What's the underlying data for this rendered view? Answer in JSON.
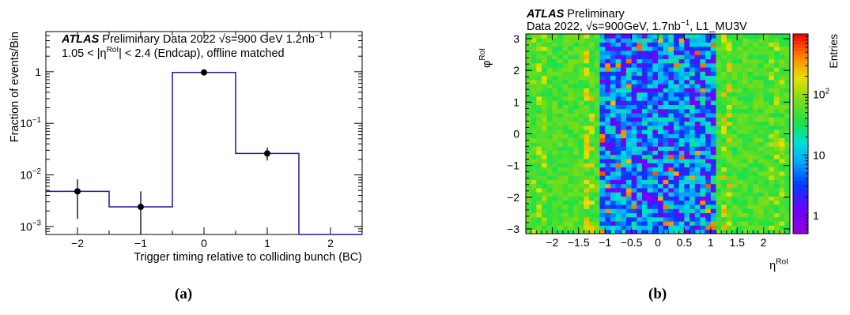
{
  "chart_data": [
    {
      "type": "line",
      "panel_caption": "(a)",
      "xlabel": "Trigger timing relative to colliding bunch (BC)",
      "ylabel": "Fraction of events/Bin",
      "xlim": [
        -2.5,
        2.5
      ],
      "ylim": [
        0.0007,
        6
      ],
      "y_scale": "log",
      "x_ticks": [
        "−2",
        "−1",
        "0",
        "1",
        "2"
      ],
      "x_tick_values": [
        -2,
        -1,
        0,
        1,
        2
      ],
      "y_ticks": [
        {
          "value": 0.001,
          "base": "10",
          "exp": "−3"
        },
        {
          "value": 0.01,
          "base": "10",
          "exp": "−2"
        },
        {
          "value": 0.1,
          "base": "10",
          "exp": "−1"
        },
        {
          "value": 1,
          "base": "1",
          "exp": ""
        }
      ],
      "annotation": {
        "atlas": "ATLAS",
        "line1": "Preliminary Data 2022 √s=900 GeV 1.2nb",
        "line1_sup": "−1",
        "line2_pre": "1.05 < |η",
        "line2_sup": "RoI",
        "line2_post": "| < 2.4 (Endcap), offline matched"
      },
      "histogram": {
        "bin_edges": [
          -2.5,
          -1.5,
          -0.5,
          0.5,
          1.5,
          2.5
        ],
        "values": [
          0.0048,
          0.0024,
          0.97,
          0.026,
          0
        ]
      },
      "points": {
        "x": [
          -2,
          -1,
          0,
          1
        ],
        "y": [
          0.0048,
          0.0024,
          0.97,
          0.026
        ],
        "y_low": [
          0.0014,
          0.0007,
          0.95,
          0.019
        ],
        "y_high": [
          0.0082,
          0.0048,
          0.99,
          0.034
        ]
      },
      "colors": {
        "histogram": "#1a1aa8",
        "points": "#000000"
      }
    },
    {
      "type": "heatmap",
      "panel_caption": "(b)",
      "title_atlas": "ATLAS",
      "title_rest": "Preliminary",
      "subtitle_pre": "Data 2022, √s=900GeV, 1.7nb",
      "subtitle_sup": "−1",
      "subtitle_post": ", L1_MU3V",
      "xlabel": "η",
      "xlabel_sup": "RoI",
      "ylabel": "φ",
      "ylabel_sup": "RoI",
      "zlabel": "Entries",
      "xlim": [
        -2.5,
        2.5
      ],
      "ylim": [
        -3.15,
        3.15
      ],
      "z_scale": "log",
      "zlim": [
        0.5,
        1000
      ],
      "x_ticks": [
        "−2",
        "−1.5",
        "−1",
        "−0.5",
        "0",
        "0.5",
        "1",
        "1.5",
        "2"
      ],
      "x_tick_values": [
        -2,
        -1.5,
        -1,
        -0.5,
        0,
        0.5,
        1,
        1.5,
        2
      ],
      "y_ticks": [
        "−3",
        "−2",
        "−1",
        "0",
        "1",
        "2",
        "3"
      ],
      "y_tick_values": [
        -3,
        -2,
        -1,
        0,
        1,
        2,
        3
      ],
      "z_ticks": [
        {
          "value": 1,
          "base": "1",
          "exp": ""
        },
        {
          "value": 10,
          "base": "10",
          "exp": ""
        },
        {
          "value": 100,
          "base": "10",
          "exp": "2"
        }
      ],
      "bins": {
        "nx": 50,
        "ny": 48
      },
      "description_of_data": "barrel |eta|<1.05 sparse (1-20 entries), endcap 1.05<|eta|<2.4 dense (~50-200 entries), hotspots near eta -1.3, phi 1.6/2.5"
    }
  ]
}
